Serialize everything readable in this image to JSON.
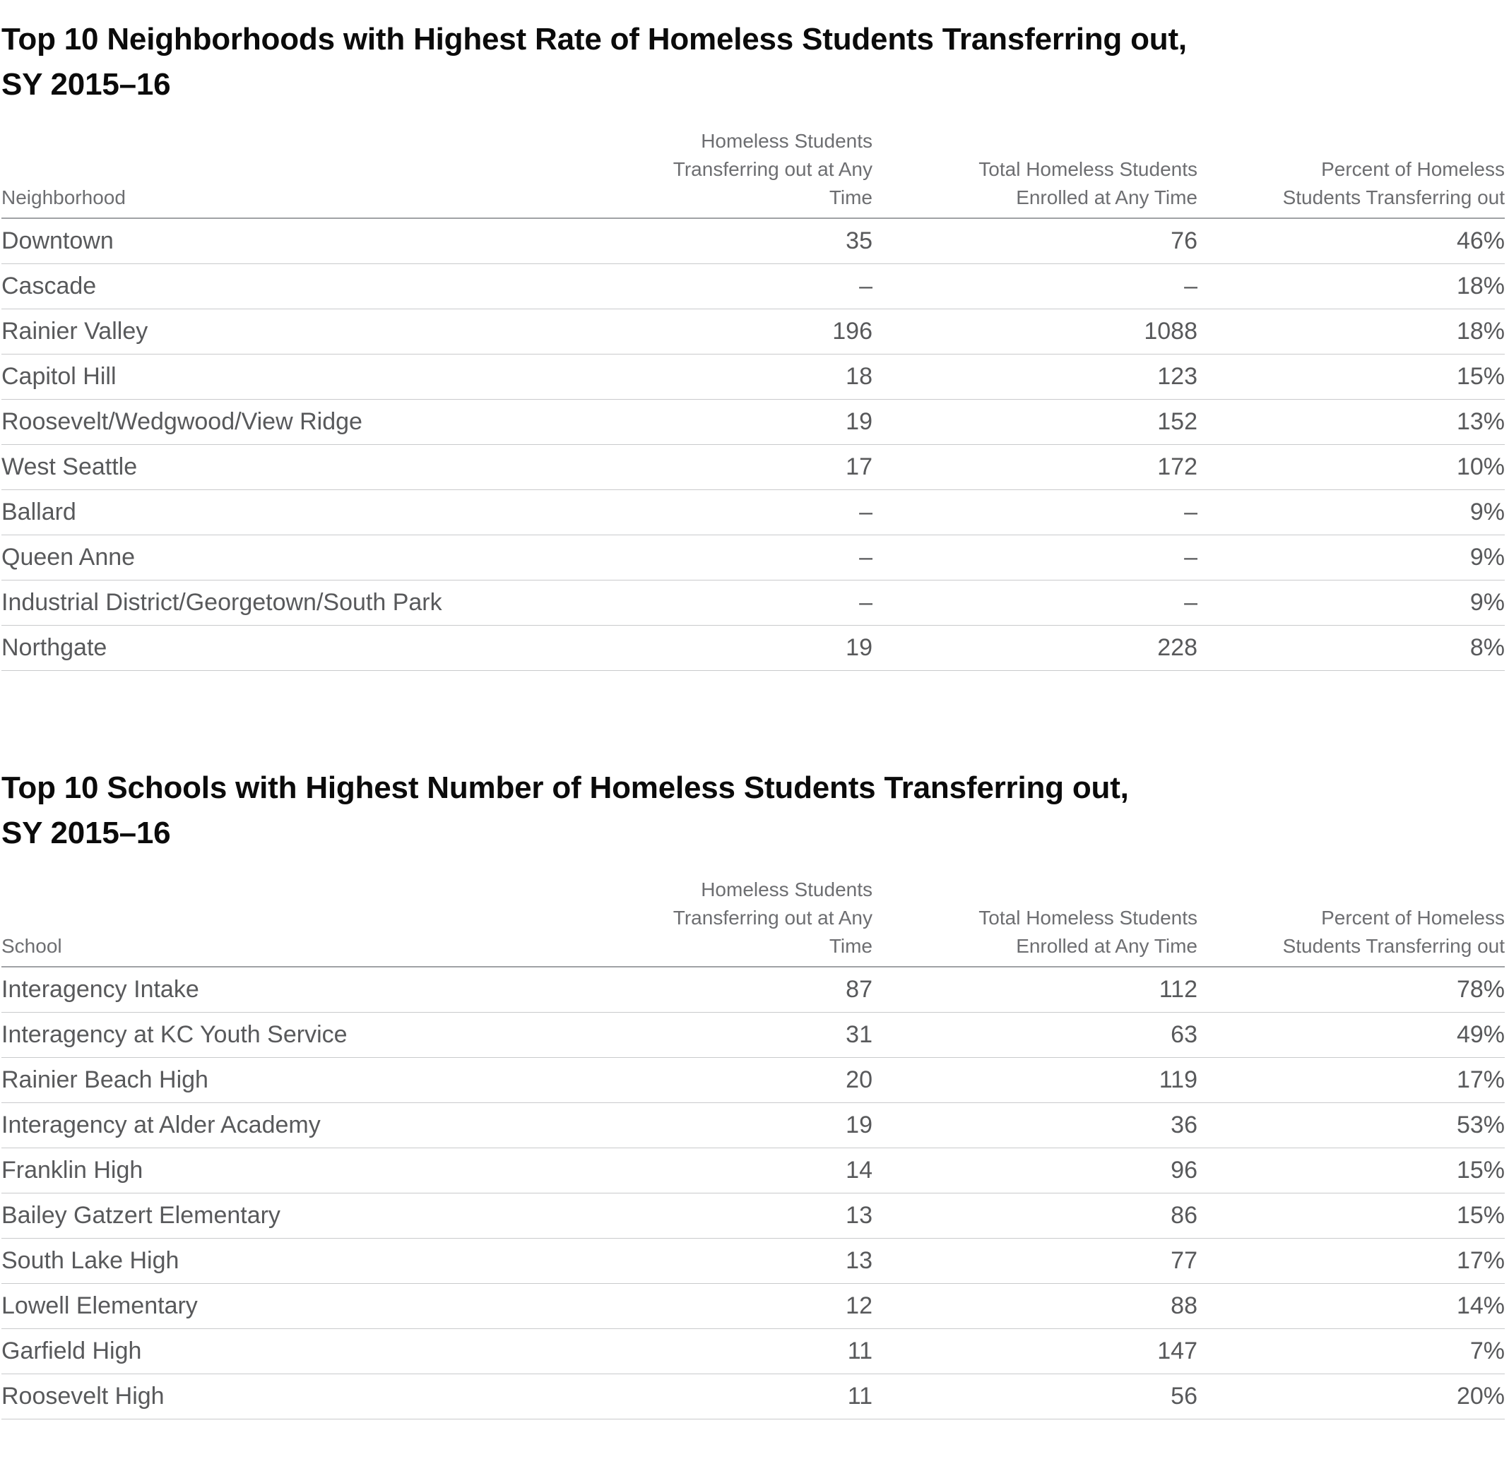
{
  "chart_data": [
    {
      "type": "table",
      "title_line1": "Top 10 Neighborhoods with Highest Rate of Homeless Students Transferring out,",
      "title_line2": "SY 2015–16",
      "columns": [
        {
          "line1": "",
          "line2": "Neighborhood"
        },
        {
          "line1": "Homeless Students",
          "line2": "Transferring out at Any Time"
        },
        {
          "line1": "Total Homeless Students",
          "line2": "Enrolled at Any Time"
        },
        {
          "line1": "Percent of Homeless",
          "line2": "Students Transferring out"
        }
      ],
      "missing_value_marker": "–",
      "rows": [
        [
          "Downtown",
          "35",
          "76",
          "46%"
        ],
        [
          "Cascade",
          "–",
          "–",
          "18%"
        ],
        [
          "Rainier Valley",
          "196",
          "1088",
          "18%"
        ],
        [
          "Capitol Hill",
          "18",
          "123",
          "15%"
        ],
        [
          "Roosevelt/Wedgwood/View Ridge",
          "19",
          "152",
          "13%"
        ],
        [
          "West Seattle",
          "17",
          "172",
          "10%"
        ],
        [
          "Ballard",
          "–",
          "–",
          "9%"
        ],
        [
          "Queen Anne",
          "–",
          "–",
          "9%"
        ],
        [
          "Industrial District/Georgetown/South Park",
          "–",
          "–",
          "9%"
        ],
        [
          "Northgate",
          "19",
          "228",
          "8%"
        ]
      ]
    },
    {
      "type": "table",
      "title_line1": "Top 10 Schools with Highest Number of Homeless Students Transferring out,",
      "title_line2": "SY 2015–16",
      "columns": [
        {
          "line1": "",
          "line2": "School"
        },
        {
          "line1": "Homeless Students",
          "line2": "Transferring out at Any Time"
        },
        {
          "line1": "Total Homeless Students",
          "line2": "Enrolled at Any Time"
        },
        {
          "line1": "Percent of Homeless",
          "line2": "Students Transferring out"
        }
      ],
      "missing_value_marker": "–",
      "rows": [
        [
          "Interagency Intake",
          "87",
          "112",
          "78%"
        ],
        [
          "Interagency at KC Youth Service",
          "31",
          "63",
          "49%"
        ],
        [
          "Rainier Beach High",
          "20",
          "119",
          "17%"
        ],
        [
          "Interagency at Alder Academy",
          "19",
          "36",
          "53%"
        ],
        [
          "Franklin High",
          "14",
          "96",
          "15%"
        ],
        [
          "Bailey Gatzert Elementary",
          "13",
          "86",
          "15%"
        ],
        [
          "South Lake High",
          "13",
          "77",
          "17%"
        ],
        [
          "Lowell Elementary",
          "12",
          "88",
          "14%"
        ],
        [
          "Garfield High",
          "11",
          "147",
          "7%"
        ],
        [
          "Roosevelt High",
          "11",
          "56",
          "20%"
        ]
      ]
    }
  ],
  "colors": {
    "title_text": "#0b0b0b",
    "header_text": "#6d6e71",
    "body_text": "#58595b",
    "header_rule": "#a0a2a5",
    "row_rule": "#c9cacc",
    "background": "#ffffff"
  }
}
